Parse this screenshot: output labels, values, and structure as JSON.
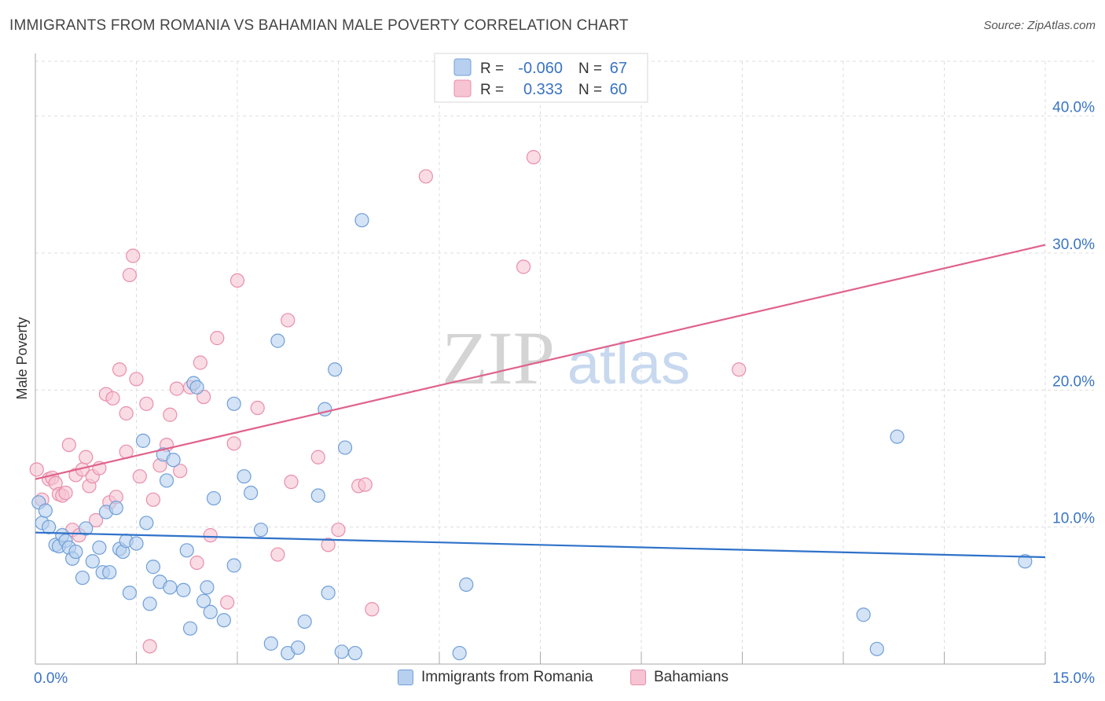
{
  "title": "IMMIGRANTS FROM ROMANIA VS BAHAMIAN MALE POVERTY CORRELATION CHART",
  "source": "Source: ZipAtlas.com",
  "watermark": {
    "zip": "ZIP",
    "atlas": "atlas"
  },
  "colors": {
    "blue_fill": "#b8d0ef",
    "blue_stroke": "#6f9fd8",
    "blue_line": "#2f72c9",
    "pink_fill": "#f7c4d3",
    "pink_stroke": "#e98eab",
    "pink_line": "#e0628b",
    "tick_text": "#3a74c4",
    "grid": "#dddddd"
  },
  "legend_stats": [
    {
      "r_label": "R =",
      "r_value": "-0.060",
      "n_label": "N =",
      "n_value": "67"
    },
    {
      "r_label": "R =",
      "r_value": "0.333",
      "n_label": "N =",
      "n_value": "60"
    }
  ],
  "chart_data": {
    "type": "scatter",
    "title": "IMMIGRANTS FROM ROMANIA VS BAHAMIAN MALE POVERTY CORRELATION CHART",
    "xlabel": "",
    "ylabel": "Male Poverty",
    "xlim": [
      0,
      15
    ],
    "ylim": [
      0,
      40
    ],
    "x_tick_labels": [
      "0.0%",
      "15.0%"
    ],
    "y_ticks": [
      10,
      20,
      30,
      40
    ],
    "y_tick_labels": [
      "10.0%",
      "20.0%",
      "30.0%",
      "40.0%"
    ],
    "grid": true,
    "legend_position": "bottom",
    "series": [
      {
        "name": "Immigrants from Romania",
        "color": "#6f9fd8",
        "r": -0.06,
        "n": 67,
        "trendline": {
          "x": [
            0,
            15
          ],
          "y": [
            9.6,
            7.8
          ]
        },
        "points": [
          [
            0.05,
            11.8
          ],
          [
            0.1,
            10.3
          ],
          [
            0.15,
            11.2
          ],
          [
            0.2,
            10.0
          ],
          [
            0.3,
            8.7
          ],
          [
            0.35,
            8.6
          ],
          [
            0.4,
            9.4
          ],
          [
            0.45,
            9.0
          ],
          [
            0.5,
            8.5
          ],
          [
            0.55,
            7.7
          ],
          [
            0.6,
            8.2
          ],
          [
            0.7,
            6.3
          ],
          [
            0.75,
            9.9
          ],
          [
            0.85,
            7.5
          ],
          [
            0.95,
            8.5
          ],
          [
            1.0,
            6.7
          ],
          [
            1.05,
            11.1
          ],
          [
            1.1,
            6.7
          ],
          [
            1.2,
            11.4
          ],
          [
            1.25,
            8.4
          ],
          [
            1.3,
            8.2
          ],
          [
            1.35,
            9.0
          ],
          [
            1.4,
            5.2
          ],
          [
            1.5,
            8.8
          ],
          [
            1.6,
            16.3
          ],
          [
            1.65,
            10.3
          ],
          [
            1.7,
            4.4
          ],
          [
            1.75,
            7.1
          ],
          [
            1.85,
            6.0
          ],
          [
            1.9,
            15.3
          ],
          [
            1.95,
            13.4
          ],
          [
            2.0,
            5.6
          ],
          [
            2.05,
            14.9
          ],
          [
            2.2,
            5.4
          ],
          [
            2.25,
            8.3
          ],
          [
            2.3,
            2.6
          ],
          [
            2.35,
            20.5
          ],
          [
            2.4,
            20.2
          ],
          [
            2.5,
            4.6
          ],
          [
            2.55,
            5.6
          ],
          [
            2.6,
            3.8
          ],
          [
            2.65,
            12.1
          ],
          [
            2.8,
            3.2
          ],
          [
            2.95,
            19.0
          ],
          [
            2.95,
            7.2
          ],
          [
            3.1,
            13.7
          ],
          [
            3.2,
            12.5
          ],
          [
            3.35,
            9.8
          ],
          [
            3.5,
            1.5
          ],
          [
            3.6,
            23.6
          ],
          [
            3.75,
            0.8
          ],
          [
            3.9,
            1.2
          ],
          [
            4.0,
            3.1
          ],
          [
            4.2,
            12.3
          ],
          [
            4.3,
            18.6
          ],
          [
            4.35,
            5.2
          ],
          [
            4.45,
            21.5
          ],
          [
            4.55,
            0.9
          ],
          [
            4.6,
            15.8
          ],
          [
            4.75,
            0.8
          ],
          [
            4.85,
            32.4
          ],
          [
            6.4,
            5.8
          ],
          [
            6.3,
            0.8
          ],
          [
            12.3,
            3.6
          ],
          [
            12.5,
            1.1
          ],
          [
            12.8,
            16.6
          ],
          [
            14.7,
            7.5
          ]
        ]
      },
      {
        "name": "Bahamians",
        "color": "#e98eab",
        "r": 0.333,
        "n": 60,
        "trendline": {
          "x": [
            0,
            15
          ],
          "y": [
            13.5,
            30.6
          ]
        },
        "points": [
          [
            0.02,
            14.2
          ],
          [
            0.1,
            12.0
          ],
          [
            0.2,
            13.5
          ],
          [
            0.25,
            13.6
          ],
          [
            0.3,
            13.2
          ],
          [
            0.35,
            12.4
          ],
          [
            0.4,
            12.3
          ],
          [
            0.5,
            16.0
          ],
          [
            0.55,
            9.8
          ],
          [
            0.6,
            13.8
          ],
          [
            0.65,
            9.4
          ],
          [
            0.7,
            14.2
          ],
          [
            0.75,
            15.1
          ],
          [
            0.8,
            13.0
          ],
          [
            0.85,
            13.7
          ],
          [
            0.9,
            10.5
          ],
          [
            0.95,
            14.3
          ],
          [
            1.05,
            19.7
          ],
          [
            1.1,
            11.8
          ],
          [
            1.15,
            19.4
          ],
          [
            1.2,
            12.2
          ],
          [
            1.25,
            21.5
          ],
          [
            1.35,
            18.3
          ],
          [
            1.35,
            15.5
          ],
          [
            1.4,
            28.4
          ],
          [
            1.45,
            29.8
          ],
          [
            1.5,
            20.8
          ],
          [
            1.55,
            13.7
          ],
          [
            1.65,
            19.0
          ],
          [
            1.7,
            1.3
          ],
          [
            1.75,
            12.0
          ],
          [
            1.85,
            14.5
          ],
          [
            1.95,
            16.0
          ],
          [
            2.0,
            18.2
          ],
          [
            2.1,
            20.1
          ],
          [
            2.15,
            14.1
          ],
          [
            2.3,
            20.2
          ],
          [
            2.4,
            7.4
          ],
          [
            2.45,
            22.0
          ],
          [
            2.5,
            19.5
          ],
          [
            2.6,
            9.4
          ],
          [
            2.7,
            23.8
          ],
          [
            2.85,
            4.5
          ],
          [
            2.95,
            16.1
          ],
          [
            3.0,
            28.0
          ],
          [
            3.3,
            18.7
          ],
          [
            3.6,
            8.0
          ],
          [
            3.75,
            25.1
          ],
          [
            3.8,
            13.3
          ],
          [
            4.2,
            15.1
          ],
          [
            4.35,
            8.7
          ],
          [
            4.5,
            9.8
          ],
          [
            4.8,
            13.0
          ],
          [
            4.9,
            13.1
          ],
          [
            5.0,
            4.0
          ],
          [
            5.8,
            35.6
          ],
          [
            7.25,
            29.0
          ],
          [
            7.4,
            37.0
          ],
          [
            10.45,
            21.5
          ],
          [
            0.45,
            12.5
          ]
        ]
      }
    ]
  }
}
